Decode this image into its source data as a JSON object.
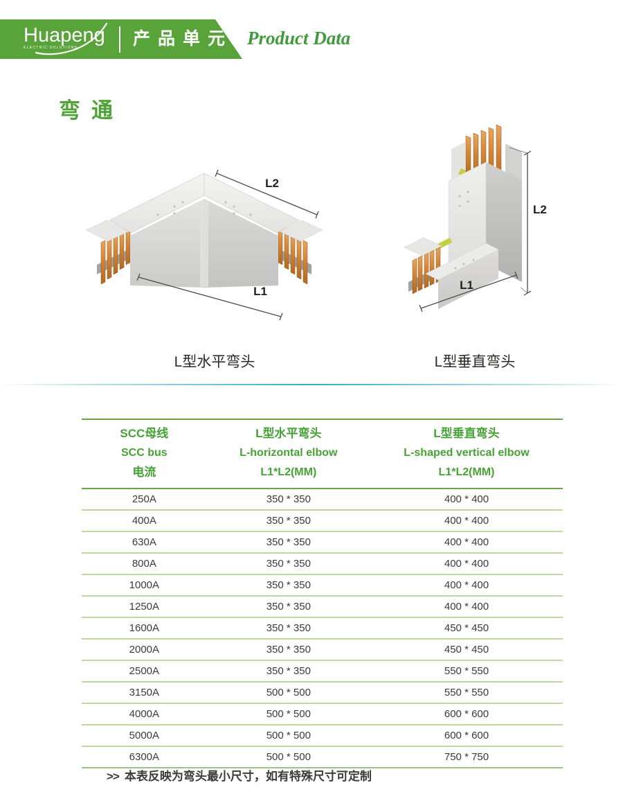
{
  "header": {
    "logo": {
      "text": "Huapeng",
      "subtext": "ELECTRIC SOLUTIONS"
    },
    "banner_title": "产品单元",
    "doc_type": "Product Data"
  },
  "page_title": "弯通",
  "figures": {
    "horizontal": {
      "caption": "L型水平弯头",
      "dim_l1": "L1",
      "dim_l2": "L2"
    },
    "vertical": {
      "caption": "L型垂直弯头",
      "dim_l1": "L1",
      "dim_l2": "L2"
    }
  },
  "table": {
    "columns": [
      {
        "line1": "SCC母线",
        "line2": "SCC bus",
        "line3": "电流"
      },
      {
        "line1": "L型水平弯头",
        "line2": "L-horizontal elbow",
        "line3": "L1*L2(MM)"
      },
      {
        "line1": "L型垂直弯头",
        "line2": "L-shaped vertical elbow",
        "line3": "L1*L2(MM)"
      }
    ],
    "rows": [
      [
        "250A",
        "350 * 350",
        "400 * 400"
      ],
      [
        "400A",
        "350 * 350",
        "400 * 400"
      ],
      [
        "630A",
        "350 * 350",
        "400 * 400"
      ],
      [
        "800A",
        "350 * 350",
        "400 * 400"
      ],
      [
        "1000A",
        "350 * 350",
        "400 * 400"
      ],
      [
        "1250A",
        "350 * 350",
        "400 * 400"
      ],
      [
        "1600A",
        "350 * 350",
        "450 * 450"
      ],
      [
        "2000A",
        "350 * 350",
        "450 * 450"
      ],
      [
        "2500A",
        "350 * 350",
        "550 * 550"
      ],
      [
        "3150A",
        "500 * 500",
        "550 * 550"
      ],
      [
        "4000A",
        "500 * 500",
        "600 * 600"
      ],
      [
        "5000A",
        "500 * 500",
        "600 * 600"
      ],
      [
        "6300A",
        "500 * 500",
        "750 * 750"
      ]
    ]
  },
  "footnote": {
    "marker": ">>",
    "text": "本表反映为弯头最小尺寸，如有特殊尺寸可定制"
  },
  "colors": {
    "brand_green": "#58a43a",
    "header_text_green": "#46a235",
    "title_green": "#50a336",
    "teal": "#35aebe",
    "copper": "#cf8336",
    "table_border_green": "#69a445",
    "row_line_green": "#bed8a2",
    "body_text": "#3a3a38"
  }
}
